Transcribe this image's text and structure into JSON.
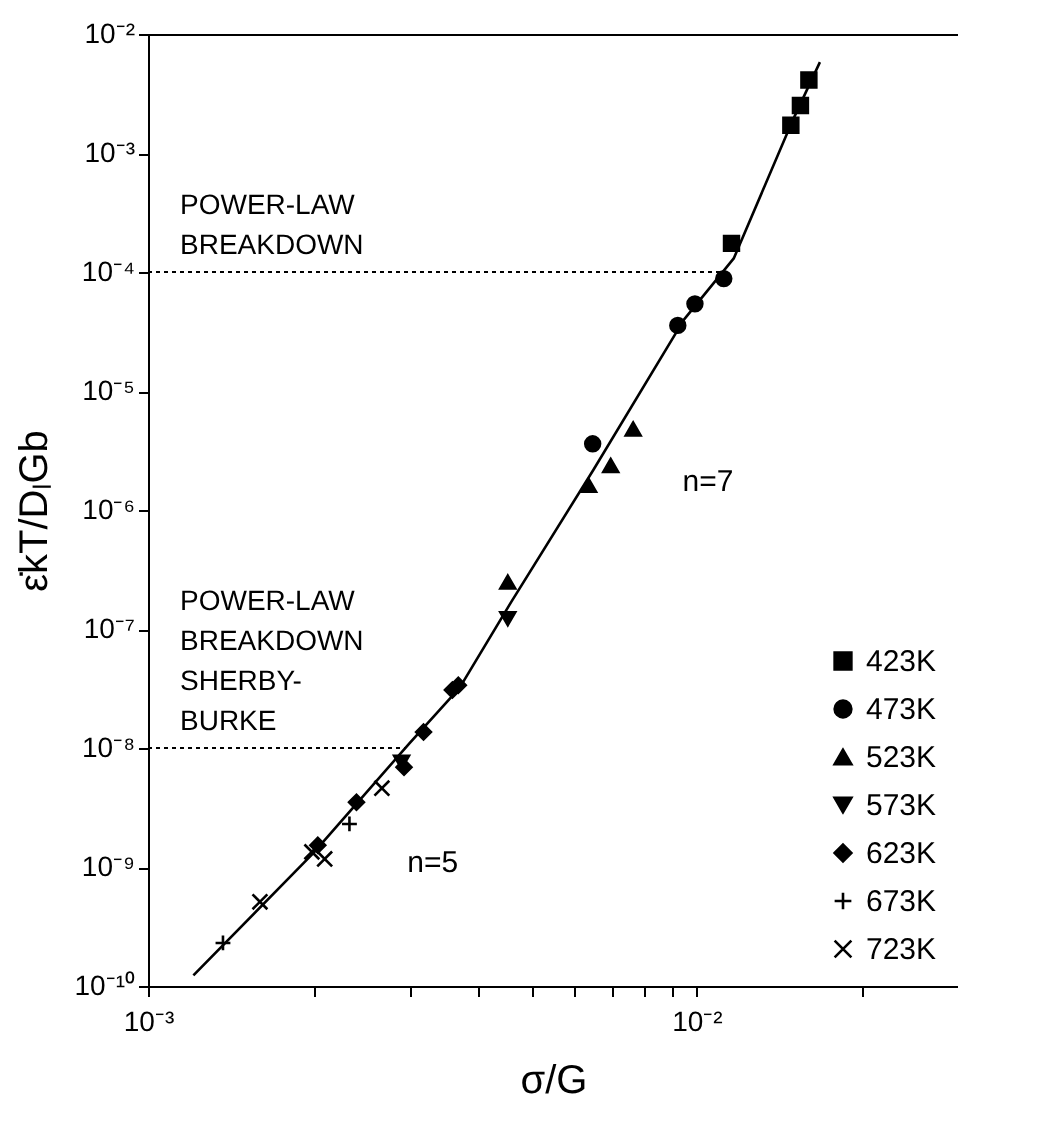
{
  "chart_data": {
    "type": "scatter",
    "xlabel": "σ/G",
    "ylabel": "ε̇kT/DₗGb",
    "log": "xy",
    "xlim": [
      0.001,
      0.03
    ],
    "ylim": [
      1e-10,
      0.01
    ],
    "xticks": [
      {
        "value": 0.001,
        "label": "10⁻³"
      },
      {
        "value": 0.002,
        "label": null
      },
      {
        "value": 0.003,
        "label": null
      },
      {
        "value": 0.004,
        "label": null
      },
      {
        "value": 0.005,
        "label": null
      },
      {
        "value": 0.006,
        "label": null
      },
      {
        "value": 0.007,
        "label": null
      },
      {
        "value": 0.008,
        "label": null
      },
      {
        "value": 0.009,
        "label": null
      },
      {
        "value": 0.01,
        "label": "10⁻²"
      },
      {
        "value": 0.02,
        "label": null
      }
    ],
    "yticks": [
      {
        "value": 1e-10,
        "label": "10⁻¹⁰"
      },
      {
        "value": 1e-09,
        "label": "10⁻⁹"
      },
      {
        "value": 1e-08,
        "label": "10⁻⁸"
      },
      {
        "value": 1e-07,
        "label": "10⁻⁷"
      },
      {
        "value": 1e-06,
        "label": "10⁻⁶"
      },
      {
        "value": 1e-05,
        "label": "10⁻⁵"
      },
      {
        "value": 0.0001,
        "label": "10⁻⁴"
      },
      {
        "value": 0.001,
        "label": "10⁻³"
      },
      {
        "value": 0.01,
        "label": "10⁻²"
      }
    ],
    "grid": false,
    "legend": "bottom right",
    "series": [
      {
        "name": "423K",
        "color": "#000000",
        "marker": "square",
        "x": [
          0.01159,
          0.01487,
          0.01548,
          0.01604
        ],
        "values": [
          0.000174,
          0.00171,
          0.00251,
          0.0041
        ]
      },
      {
        "name": "473K",
        "color": "#000000",
        "marker": "circle",
        "x": [
          0.00647,
          0.00925,
          0.00994,
          0.01122
        ],
        "values": [
          3.6e-06,
          3.56e-05,
          5.4e-05,
          8.8e-05
        ]
      },
      {
        "name": "523K",
        "color": "#000000",
        "marker": "triangle",
        "x": [
          0.00453,
          0.00636,
          0.00698,
          0.00767
        ],
        "values": [
          2.48e-07,
          1.61e-06,
          2.37e-06,
          4.8e-06
        ]
      },
      {
        "name": "573K",
        "color": "#000000",
        "marker": "triangle-down",
        "x": [
          0.0029,
          0.00453
        ],
        "values": [
          7.6e-09,
          1.22e-07
        ]
      },
      {
        "name": "623K",
        "color": "#000000",
        "marker": "diamond",
        "x": [
          0.00204,
          0.0024,
          0.00293,
          0.00318,
          0.00359,
          0.00368
        ],
        "values": [
          1.52e-09,
          3.5e-09,
          6.9e-09,
          1.36e-08,
          3.07e-08,
          3.36e-08
        ]
      },
      {
        "name": "673K",
        "color": "#000000",
        "marker": "cross",
        "x": [
          0.00137,
          0.00233
        ],
        "values": [
          2.3e-10,
          2.3e-09
        ]
      },
      {
        "name": "723K",
        "color": "#000000",
        "marker": "x",
        "x": [
          0.0016,
          0.00199,
          0.0021,
          0.00267
        ],
        "values": [
          5.1e-10,
          1.34e-09,
          1.17e-09,
          4.6e-09
        ]
      },
      {
        "type": "line",
        "color": "#000000",
        "line_style": "solid",
        "x": [
          0.00121,
          0.002,
          0.003,
          0.0037,
          0.0046,
          0.0065,
          0.0095,
          0.0117,
          0.015,
          0.0168
        ],
        "values": [
          1.23e-10,
          1.3e-09,
          1.1e-08,
          3.2e-08,
          1.7e-07,
          2.2e-06,
          4e-05,
          0.00013,
          0.0019,
          0.0058
        ]
      }
    ],
    "ref_lines": [
      {
        "axis": "y",
        "value": 0.0001,
        "label": "POWER-LAW\nBREAKDOWN",
        "line_style": "dotted"
      },
      {
        "axis": "y",
        "value": 1e-08,
        "label": "POWER-LAW\nBREAKDOWN\nSHERBY-\nBURKE",
        "line_style": "dotted"
      }
    ],
    "annotations": [
      "n=7",
      "n=5"
    ]
  }
}
